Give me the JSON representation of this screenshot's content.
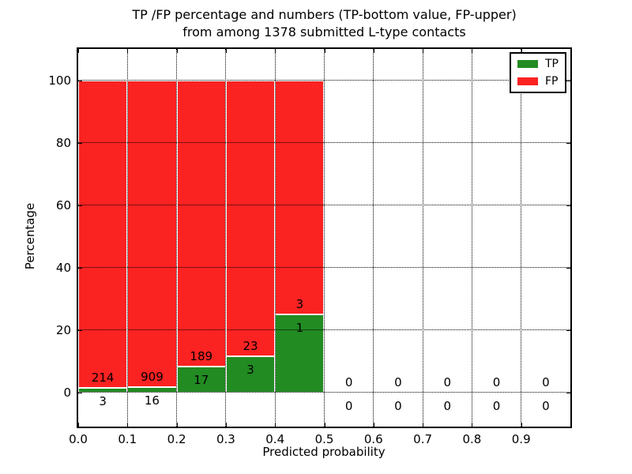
{
  "title": {
    "line1": "TP /FP percentage and numbers (TP-bottom value, FP-upper)",
    "line2": "from among 1378 submitted L-type contacts"
  },
  "chart_data": {
    "type": "bar",
    "subtype": "stacked-percentage-histogram",
    "title": "TP /FP percentage and numbers (TP-bottom value, FP-upper) from among 1378 submitted L-type contacts",
    "xlabel": "Predicted probability",
    "ylabel": "Percentage",
    "xlim": [
      0.0,
      1.0
    ],
    "ylim": [
      -11,
      110
    ],
    "xtick_values": [
      0.0,
      0.1,
      0.2,
      0.3,
      0.4,
      0.5,
      0.6,
      0.7,
      0.8,
      0.9
    ],
    "xtick_labels": [
      "0.0",
      "0.1",
      "0.2",
      "0.3",
      "0.4",
      "0.5",
      "0.6",
      "0.7",
      "0.8",
      "0.9"
    ],
    "ytick_values": [
      0,
      20,
      40,
      60,
      80,
      100
    ],
    "ytick_labels": [
      "0",
      "20",
      "40",
      "60",
      "80",
      "100"
    ],
    "grid": "dotted black, drawn over bars",
    "legend": {
      "position": "upper right",
      "entries": [
        "TP",
        "FP"
      ]
    },
    "bin_width": 0.1,
    "bin_starts": [
      0.0,
      0.1,
      0.2,
      0.3,
      0.4,
      0.5,
      0.6,
      0.7,
      0.8,
      0.9
    ],
    "series": [
      {
        "name": "TP",
        "color": "#228B22",
        "counts": [
          3,
          16,
          17,
          3,
          1,
          0,
          0,
          0,
          0,
          0
        ]
      },
      {
        "name": "FP",
        "color": "#FB2222",
        "counts": [
          214,
          909,
          189,
          23,
          3,
          0,
          0,
          0,
          0,
          0
        ]
      }
    ],
    "tp_percent_of_bin": [
      1.38,
      1.73,
      8.25,
      11.54,
      25.0,
      0,
      0,
      0,
      0,
      0
    ],
    "total_contacts": 1378,
    "bar_edge_color": "#ffffff"
  }
}
